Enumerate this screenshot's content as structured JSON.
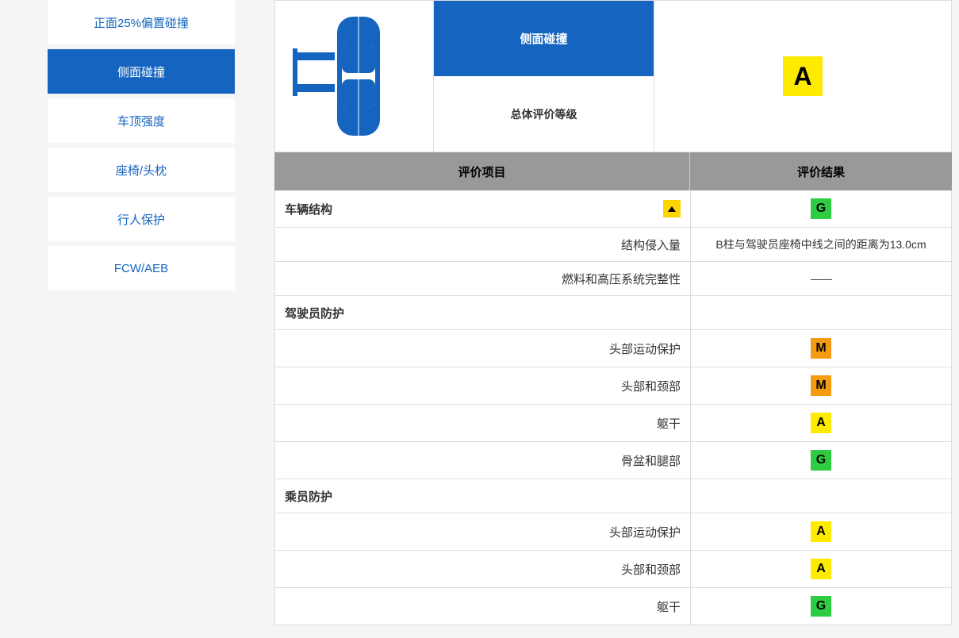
{
  "sidebar": {
    "items": [
      {
        "label": "正面25%偏置碰撞",
        "active": false
      },
      {
        "label": "侧面碰撞",
        "active": true
      },
      {
        "label": "车顶强度",
        "active": false
      },
      {
        "label": "座椅/头枕",
        "active": false
      },
      {
        "label": "行人保护",
        "active": false
      },
      {
        "label": "FCW/AEB",
        "active": false
      }
    ]
  },
  "header": {
    "test_name": "侧面碰撞",
    "overall_label": "总体评价等级",
    "overall_rating": "A",
    "overall_color": "#ffeb00"
  },
  "table": {
    "col_item": "评价项目",
    "col_result": "评价结果"
  },
  "rows": [
    {
      "type": "section",
      "label": "车辆结构",
      "rating": "G",
      "color": "#2ecc40",
      "expandable": true
    },
    {
      "type": "sub",
      "label": "结构侵入量",
      "text": "B柱与驾驶员座椅中线之间的距离为13.0cm"
    },
    {
      "type": "sub",
      "label": "燃料和高压系统完整性",
      "text": "——"
    },
    {
      "type": "section",
      "label": "驾驶员防护",
      "rating": null
    },
    {
      "type": "sub",
      "label": "头部运动保护",
      "rating": "M",
      "color": "#f39c12"
    },
    {
      "type": "sub",
      "label": "头部和颈部",
      "rating": "M",
      "color": "#f39c12"
    },
    {
      "type": "sub",
      "label": "躯干",
      "rating": "A",
      "color": "#ffeb00"
    },
    {
      "type": "sub",
      "label": "骨盆和腿部",
      "rating": "G",
      "color": "#2ecc40"
    },
    {
      "type": "section",
      "label": "乘员防护",
      "rating": null
    },
    {
      "type": "sub",
      "label": "头部运动保护",
      "rating": "A",
      "color": "#ffeb00"
    },
    {
      "type": "sub",
      "label": "头部和颈部",
      "rating": "A",
      "color": "#ffeb00"
    },
    {
      "type": "sub",
      "label": "躯干",
      "rating": "G",
      "color": "#2ecc40"
    }
  ],
  "colors": {
    "primary": "#1565c0",
    "header_bg": "#999",
    "border": "#ddd"
  }
}
